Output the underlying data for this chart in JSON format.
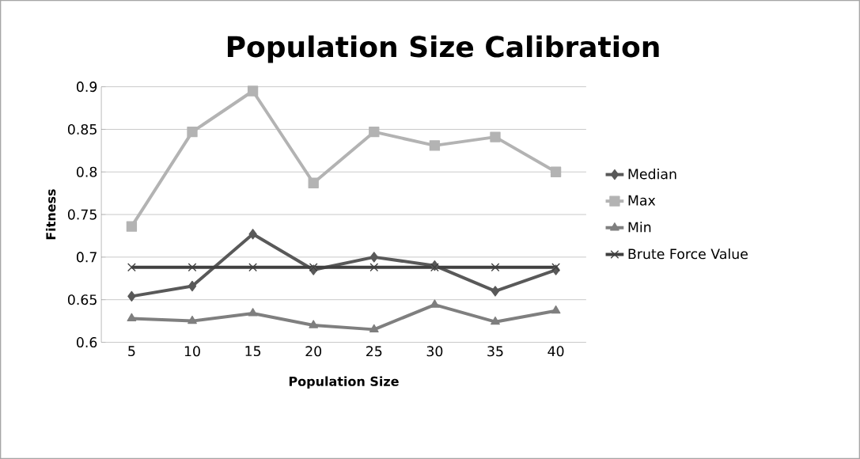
{
  "chart_data": {
    "type": "line",
    "title": "Population Size Calibration",
    "xlabel": "Population Size",
    "ylabel": "Fitness",
    "categories": [
      "5",
      "10",
      "15",
      "20",
      "25",
      "30",
      "35",
      "40"
    ],
    "series": [
      {
        "name": "Median",
        "color": "#595959",
        "marker": "diamond",
        "values": [
          0.654,
          0.666,
          0.727,
          0.685,
          0.7,
          0.69,
          0.66,
          0.685
        ]
      },
      {
        "name": "Max",
        "color": "#b3b3b3",
        "marker": "square",
        "values": [
          0.736,
          0.847,
          0.895,
          0.787,
          0.847,
          0.831,
          0.841,
          0.8
        ]
      },
      {
        "name": "Min",
        "color": "#7f7f7f",
        "marker": "triangle",
        "values": [
          0.628,
          0.625,
          0.634,
          0.62,
          0.615,
          0.644,
          0.624,
          0.637
        ]
      },
      {
        "name": "Brute Force Value",
        "color": "#404040",
        "marker": "cross",
        "values": [
          0.688,
          0.688,
          0.688,
          0.688,
          0.688,
          0.688,
          0.688,
          0.688
        ]
      }
    ],
    "ylim": [
      0.6,
      0.9
    ],
    "yticks": [
      0.6,
      0.65,
      0.7,
      0.75,
      0.8,
      0.85,
      0.9
    ],
    "grid": "y",
    "legend": "right"
  }
}
